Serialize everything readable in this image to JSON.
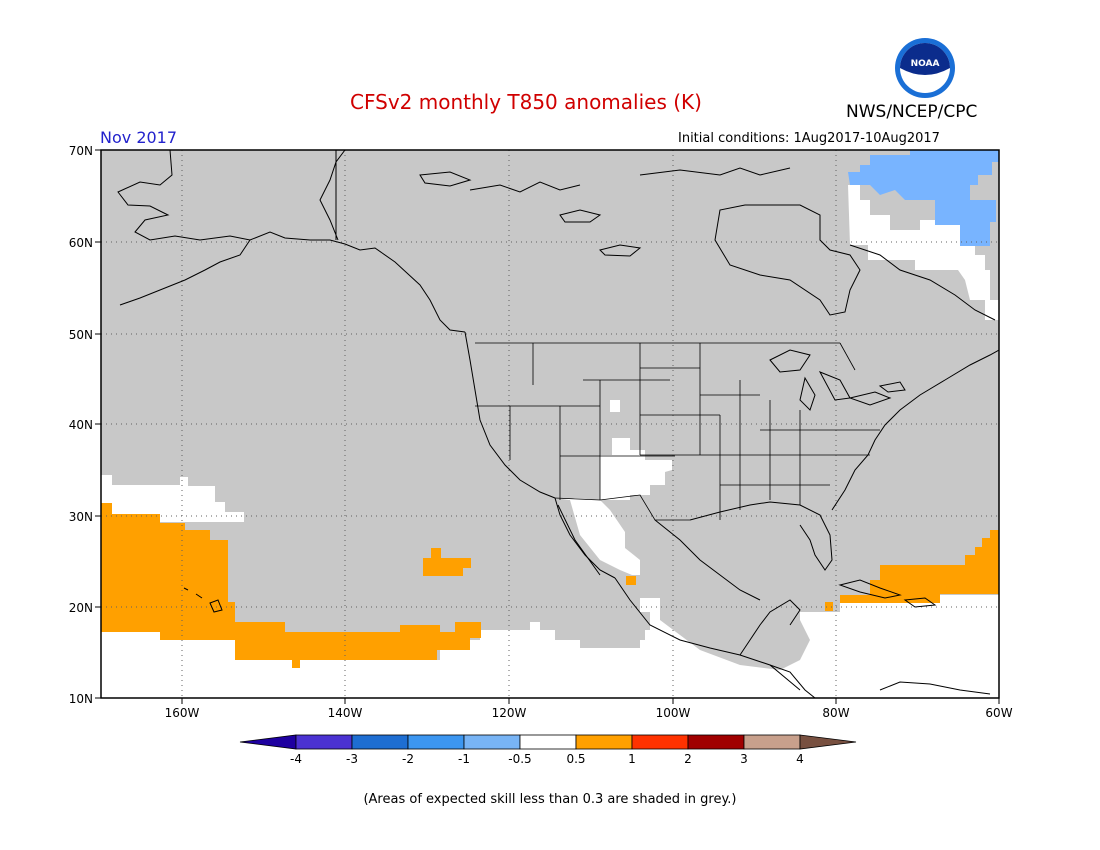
{
  "header": {
    "title": "CFSv2 monthly T850 anomalies (K)",
    "agency": "NWS/NCEP/CPC",
    "month": "Nov 2017",
    "initial_conditions": "Initial conditions: 1Aug2017-10Aug2017",
    "logo_icon": "noaa-logo-icon",
    "logo_text": "NOAA"
  },
  "map": {
    "lat_labels": [
      "70N",
      "60N",
      "50N",
      "40N",
      "30N",
      "20N",
      "10N"
    ],
    "lon_labels": [
      "160W",
      "140W",
      "120W",
      "100W",
      "80W",
      "60W"
    ],
    "colors": {
      "low_skill_grey": "#c8c8c8",
      "near_normal_white": "#ffffff",
      "positive_0_5_to_1": "#ffa000",
      "negative_1_to_0_5": "#78b4ff",
      "coastline": "#000000"
    }
  },
  "colorbar": {
    "tick_labels": [
      "-4",
      "-3",
      "-2",
      "-1",
      "-0.5",
      "0.5",
      "1",
      "2",
      "3",
      "4"
    ],
    "colors": [
      "#1e00a0",
      "#4b32d2",
      "#1e6ed2",
      "#3c96f0",
      "#78b4f5",
      "#ffffff",
      "#ffa000",
      "#ff3200",
      "#a00000",
      "#c8a08c",
      "#785040"
    ]
  },
  "footnote": "(Areas of expected skill less than 0.3 are shaded in grey.)"
}
